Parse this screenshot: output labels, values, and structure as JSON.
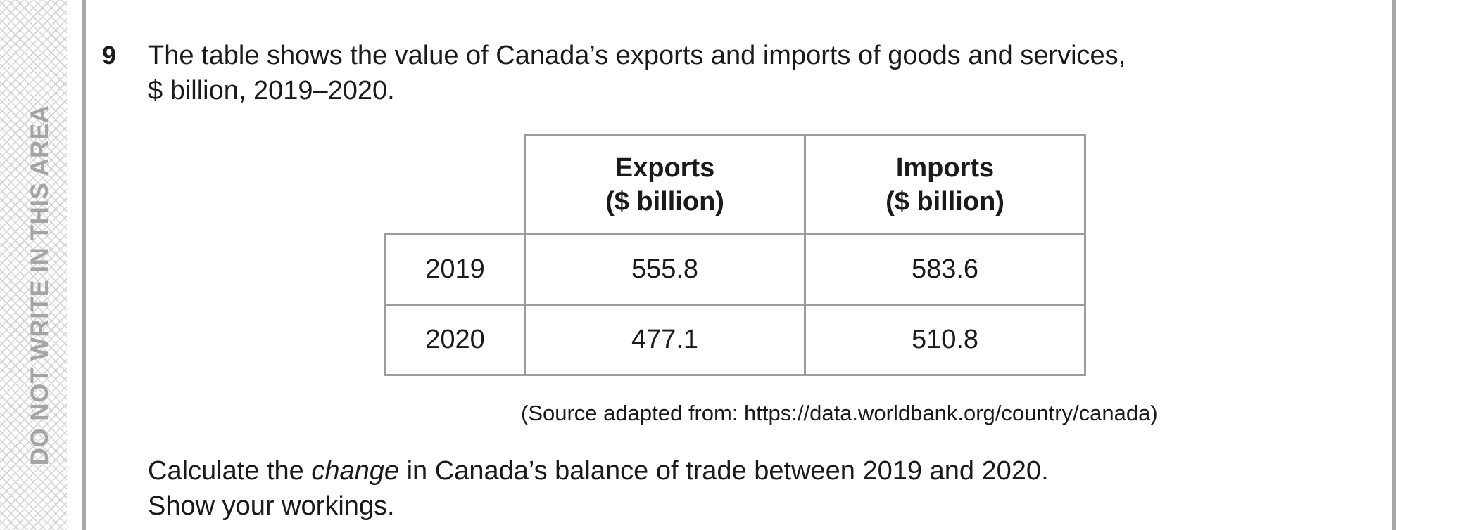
{
  "margin": {
    "text": "DO NOT WRITE IN THIS AREA"
  },
  "question": {
    "number": "9",
    "line1": "The table shows the value of Canada’s exports and imports of goods and services,",
    "line2": "$ billion, 2019–2020."
  },
  "table": {
    "headers": [
      {
        "line1": "Exports",
        "line2": "($ billion)"
      },
      {
        "line1": "Imports",
        "line2": "($ billion)"
      }
    ],
    "rows": [
      {
        "year": "2019",
        "exports": "555.8",
        "imports": "583.6"
      },
      {
        "year": "2020",
        "exports": "477.1",
        "imports": "510.8"
      }
    ]
  },
  "source": "(Source adapted from: https://data.worldbank.org/country/canada)",
  "task": {
    "line1_before": "Calculate the ",
    "line1_emphasis": "change",
    "line1_after": " in Canada’s balance of trade between 2019 and 2020.",
    "line2": "Show your workings."
  },
  "colors": {
    "text": "#1a1a1a",
    "margin_text": "#a4a4a4",
    "rules": "#a7a7a7",
    "table_border": "#9c9c9c"
  }
}
